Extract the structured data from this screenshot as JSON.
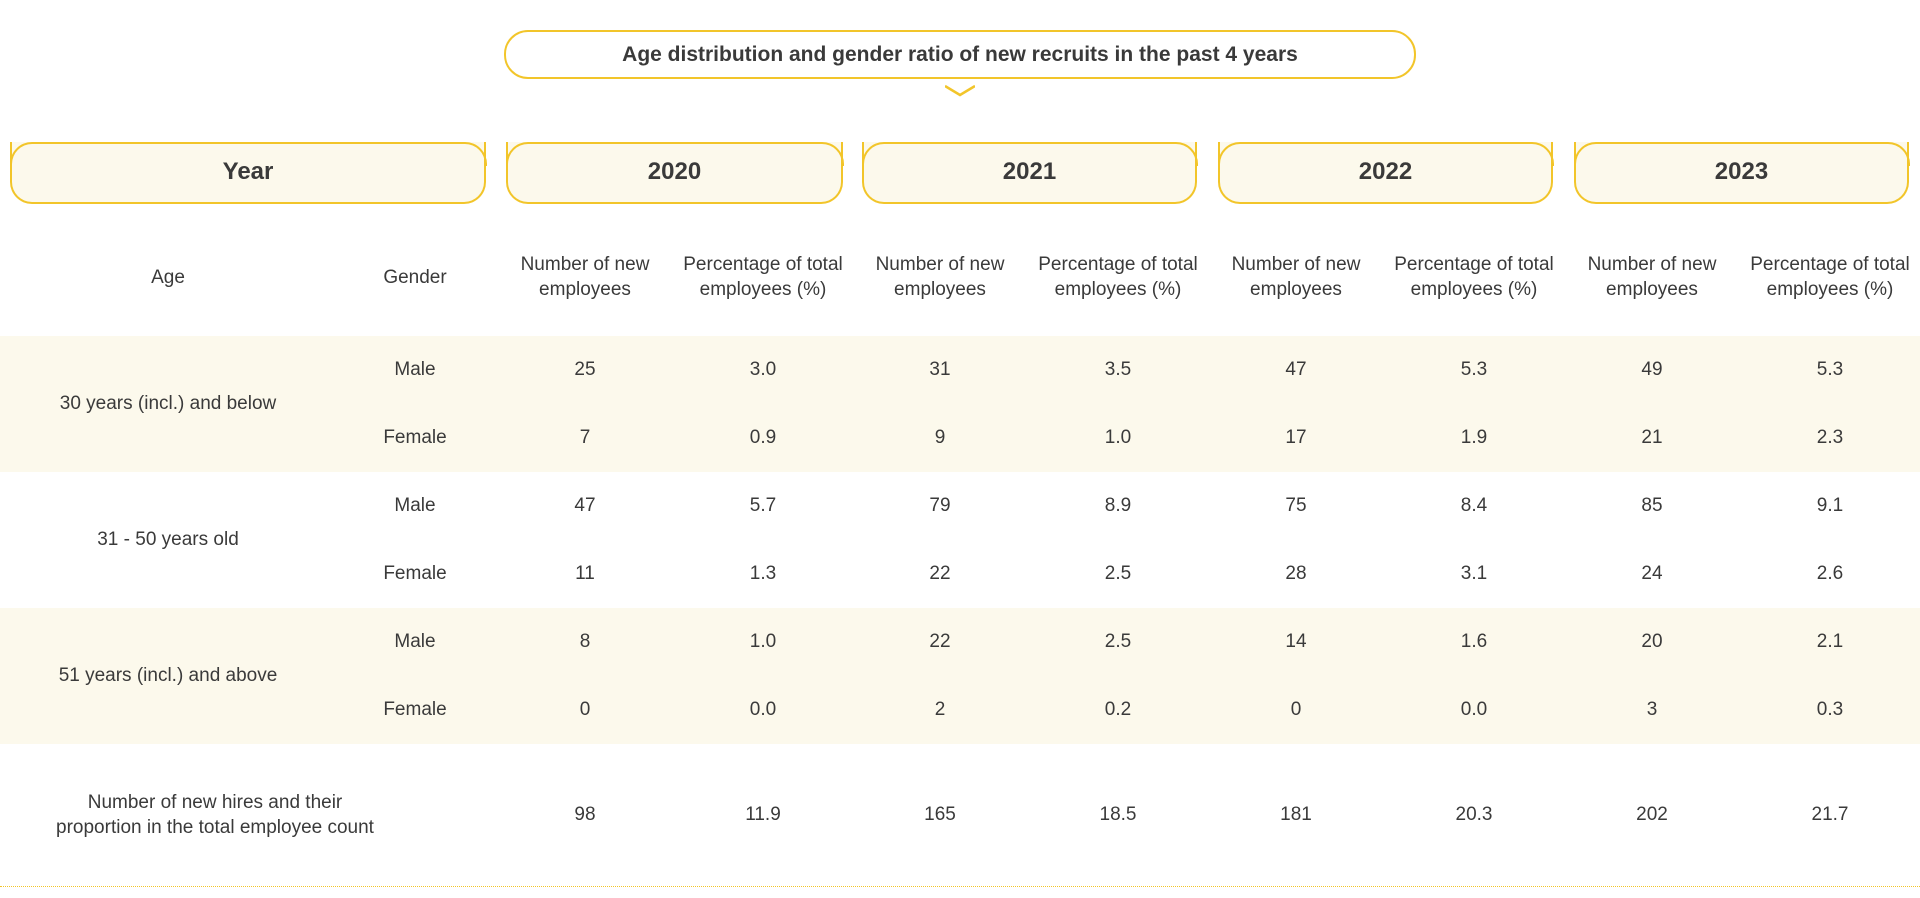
{
  "title": "Age distribution and gender ratio of new recruits in the past 4 years",
  "header": {
    "year_label": "Year",
    "years": [
      "2020",
      "2021",
      "2022",
      "2023"
    ]
  },
  "columns": {
    "age": "Age",
    "gender": "Gender",
    "count": "Number of new\nemployees",
    "percent": "Percentage of total\nemployees (%)"
  },
  "rows": [
    {
      "age": "30 years (incl.) and below",
      "male": {
        "label": "Male",
        "values": [
          "25",
          "3.0",
          "31",
          "3.5",
          "47",
          "5.3",
          "49",
          "5.3"
        ]
      },
      "female": {
        "label": "Female",
        "values": [
          "7",
          "0.9",
          "9",
          "1.0",
          "17",
          "1.9",
          "21",
          "2.3"
        ]
      }
    },
    {
      "age": "31 - 50 years old",
      "male": {
        "label": "Male",
        "values": [
          "47",
          "5.7",
          "79",
          "8.9",
          "75",
          "8.4",
          "85",
          "9.1"
        ]
      },
      "female": {
        "label": "Female",
        "values": [
          "11",
          "1.3",
          "22",
          "2.5",
          "28",
          "3.1",
          "24",
          "2.6"
        ]
      }
    },
    {
      "age": "51 years (incl.) and above",
      "male": {
        "label": "Male",
        "values": [
          "8",
          "1.0",
          "22",
          "2.5",
          "14",
          "1.6",
          "20",
          "2.1"
        ]
      },
      "female": {
        "label": "Female",
        "values": [
          "0",
          "0.0",
          "2",
          "0.2",
          "0",
          "0.0",
          "3",
          "0.3"
        ]
      }
    }
  ],
  "total": {
    "label": "Number of new hires and their\nproportion in the total employee count",
    "values": [
      "98",
      "11.9",
      "165",
      "18.5",
      "181",
      "20.3",
      "202",
      "21.7"
    ]
  },
  "colors": {
    "accent": "#f2c52a",
    "band": "#fcf9ec",
    "text": "#3a3a3a"
  }
}
